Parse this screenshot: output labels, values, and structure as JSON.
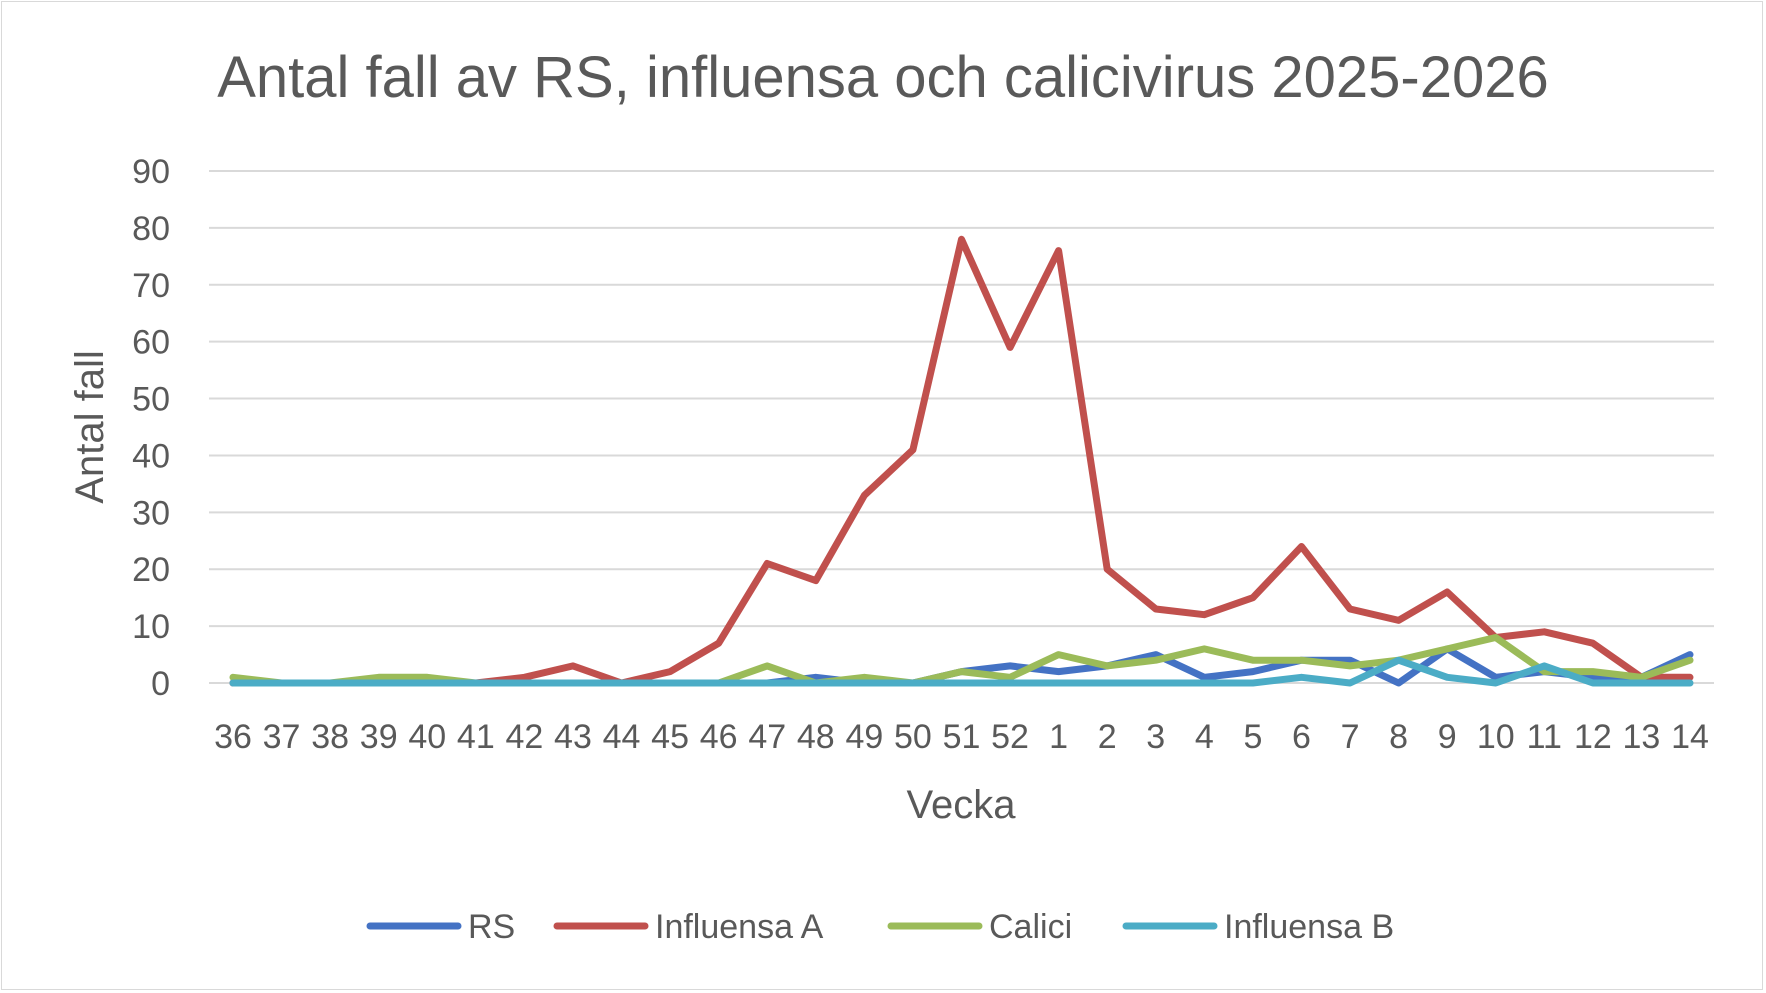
{
  "chart_data": {
    "type": "line",
    "title": "Antal fall av RS, influensa och calicivirus 2025-2026",
    "xlabel": "Vecka",
    "ylabel": "Antal fall",
    "ylim": [
      0,
      90
    ],
    "yticks": [
      0,
      10,
      20,
      30,
      40,
      50,
      60,
      70,
      80,
      90
    ],
    "grid": true,
    "legend": "bottom",
    "categories": [
      "36",
      "37",
      "38",
      "39",
      "40",
      "41",
      "42",
      "43",
      "44",
      "45",
      "46",
      "47",
      "48",
      "49",
      "50",
      "51",
      "52",
      "1",
      "2",
      "3",
      "4",
      "5",
      "6",
      "7",
      "8",
      "9",
      "10",
      "11",
      "12",
      "13",
      "14"
    ],
    "series": [
      {
        "name": "RS",
        "color": "#4472c4",
        "values": [
          0,
          0,
          0,
          0,
          0,
          0,
          0,
          0,
          0,
          0,
          0,
          0,
          1,
          0,
          0,
          2,
          3,
          2,
          3,
          5,
          1,
          2,
          4,
          4,
          0,
          6,
          1,
          2,
          1,
          1,
          5
        ]
      },
      {
        "name": "Influensa A",
        "color": "#c0504d",
        "values": [
          0,
          0,
          0,
          0,
          0,
          0,
          1,
          3,
          0,
          2,
          7,
          21,
          18,
          33,
          41,
          78,
          59,
          76,
          20,
          13,
          12,
          15,
          24,
          13,
          11,
          16,
          8,
          9,
          7,
          1,
          1
        ]
      },
      {
        "name": "Calici",
        "color": "#9bbb59",
        "values": [
          1,
          0,
          0,
          1,
          1,
          0,
          0,
          0,
          0,
          0,
          0,
          3,
          0,
          1,
          0,
          2,
          1,
          5,
          3,
          4,
          6,
          4,
          4,
          3,
          4,
          6,
          8,
          2,
          2,
          1,
          4
        ]
      },
      {
        "name": "Influensa B",
        "color": "#4bacc6",
        "values": [
          0,
          0,
          0,
          0,
          0,
          0,
          0,
          0,
          0,
          0,
          0,
          0,
          0,
          0,
          0,
          0,
          0,
          0,
          0,
          0,
          0,
          0,
          1,
          0,
          4,
          1,
          0,
          3,
          0,
          0,
          0
        ]
      }
    ]
  }
}
